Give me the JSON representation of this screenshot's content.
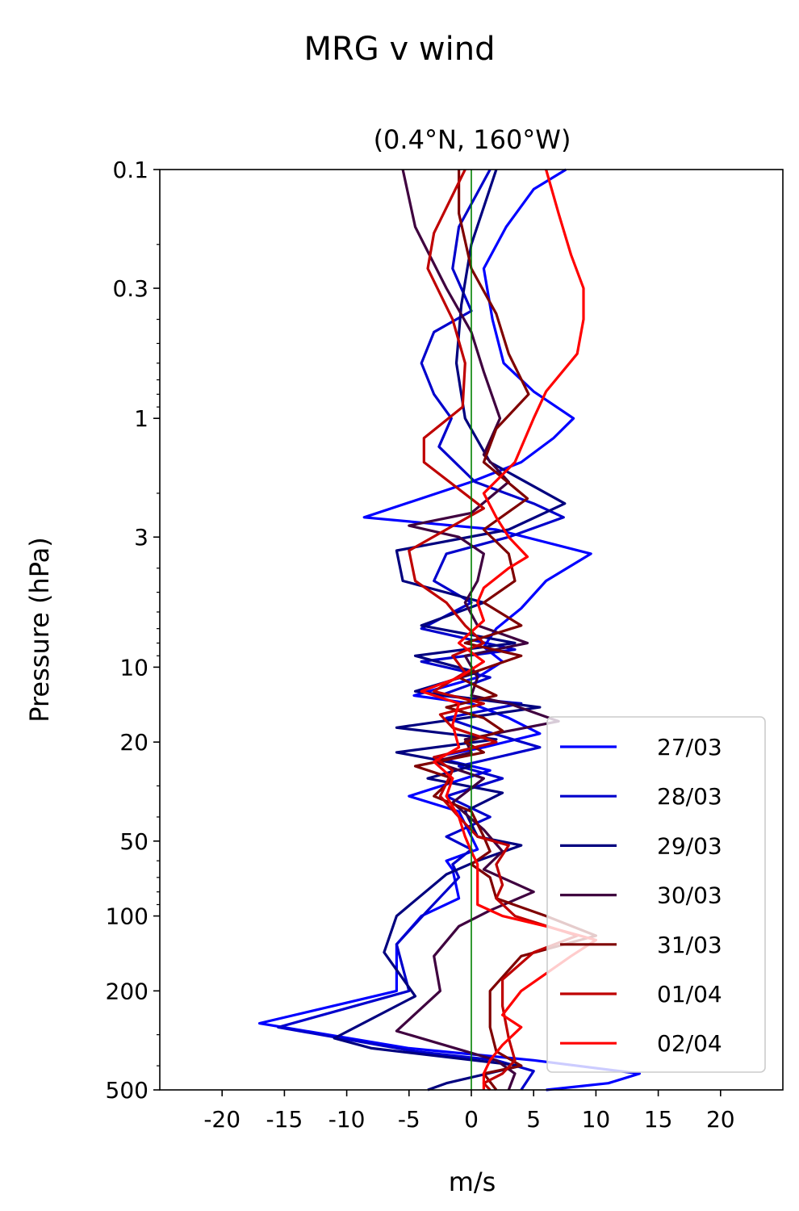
{
  "figure_title": "MRG v wind",
  "chart_data": {
    "type": "line",
    "title": "(0.4°N, 160°W)",
    "xlabel": "m/s",
    "ylabel": "Pressure (hPa)",
    "xlim": [
      -25,
      25
    ],
    "ylim": [
      500,
      0.1
    ],
    "yscale": "log",
    "xticks": [
      -20,
      -15,
      -10,
      -5,
      0,
      5,
      10,
      15,
      20
    ],
    "xtick_labels": [
      "-20",
      "-15",
      "-10",
      "-5",
      "0",
      "5",
      "10",
      "15",
      "20"
    ],
    "yticks": [
      0.1,
      0.3,
      1,
      3,
      10,
      20,
      50,
      100,
      200,
      500
    ],
    "ytick_labels": [
      "0.1",
      "0.3",
      "1",
      "3",
      "10",
      "20",
      "50",
      "100",
      "200",
      "500"
    ],
    "grid": false,
    "legend_position": "lower-right",
    "reference_line": {
      "x": 0,
      "color": "#008000"
    },
    "series": [
      {
        "name": "27/03",
        "color": "#0000ff",
        "points": [
          [
            7.6,
            0.1
          ],
          [
            5.0,
            0.12
          ],
          [
            2.8,
            0.17
          ],
          [
            1.0,
            0.25
          ],
          [
            1.7,
            0.4
          ],
          [
            2.6,
            0.6
          ],
          [
            5.0,
            0.78
          ],
          [
            8.2,
            1.0
          ],
          [
            6.6,
            1.2
          ],
          [
            4.0,
            1.5
          ],
          [
            0.0,
            1.8
          ],
          [
            -8.6,
            2.5
          ],
          [
            2.0,
            2.8
          ],
          [
            9.6,
            3.5
          ],
          [
            6.0,
            4.5
          ],
          [
            4.0,
            5.8
          ],
          [
            2.0,
            7.0
          ],
          [
            1.0,
            8.3
          ],
          [
            2.5,
            9.5
          ],
          [
            0.5,
            11
          ],
          [
            -4.6,
            13
          ],
          [
            0.0,
            14
          ],
          [
            3.0,
            16
          ],
          [
            5.5,
            18.5
          ],
          [
            1.0,
            21
          ],
          [
            -3.0,
            23
          ],
          [
            1.5,
            26
          ],
          [
            -5.0,
            33
          ],
          [
            -1.0,
            38
          ],
          [
            0.0,
            48
          ],
          [
            0.5,
            54
          ],
          [
            -2.0,
            60
          ],
          [
            -1.5,
            65
          ],
          [
            -1.0,
            85
          ],
          [
            -4.0,
            100
          ],
          [
            -6.0,
            130
          ],
          [
            -6.0,
            200
          ],
          [
            -17.0,
            270
          ],
          [
            -5.0,
            340
          ],
          [
            5.0,
            380
          ],
          [
            13.5,
            430
          ],
          [
            11.0,
            470
          ],
          [
            6.0,
            500
          ]
        ]
      },
      {
        "name": "28/03",
        "color": "#0000cc",
        "points": [
          [
            1.5,
            0.1
          ],
          [
            -1.0,
            0.17
          ],
          [
            -1.5,
            0.25
          ],
          [
            0.0,
            0.37
          ],
          [
            -3.0,
            0.45
          ],
          [
            -4.0,
            0.6
          ],
          [
            -3.0,
            0.8
          ],
          [
            -1.6,
            1.0
          ],
          [
            -2.6,
            1.3
          ],
          [
            0.3,
            1.8
          ],
          [
            5.0,
            2.2
          ],
          [
            7.4,
            2.5
          ],
          [
            3.0,
            3.0
          ],
          [
            -2.0,
            3.5
          ],
          [
            -3.0,
            4.5
          ],
          [
            0.0,
            5.5
          ],
          [
            -4.0,
            7.0
          ],
          [
            3.5,
            8.5
          ],
          [
            -4.0,
            9.5
          ],
          [
            1.5,
            11
          ],
          [
            -2.5,
            13
          ],
          [
            4.0,
            14
          ],
          [
            -2.0,
            16
          ],
          [
            1.0,
            18
          ],
          [
            5.5,
            21
          ],
          [
            -1.0,
            25
          ],
          [
            2.5,
            28
          ],
          [
            -2.0,
            33
          ],
          [
            1.5,
            40
          ],
          [
            -2.0,
            48
          ],
          [
            0.0,
            54
          ],
          [
            -1.5,
            62
          ],
          [
            -1.0,
            70
          ],
          [
            -3.5,
            95
          ],
          [
            -6.0,
            130
          ],
          [
            -5.0,
            200
          ],
          [
            -15.5,
            280
          ],
          [
            -4.5,
            350
          ],
          [
            2.0,
            380
          ],
          [
            5.0,
            420
          ],
          [
            4.0,
            500
          ]
        ]
      },
      {
        "name": "29/03",
        "color": "#00007f",
        "points": [
          [
            2.0,
            0.1
          ],
          [
            0.0,
            0.2
          ],
          [
            -0.8,
            0.35
          ],
          [
            -1.2,
            0.6
          ],
          [
            -0.5,
            1.0
          ],
          [
            1.5,
            1.5
          ],
          [
            7.5,
            2.2
          ],
          [
            3.0,
            2.8
          ],
          [
            -6.0,
            3.4
          ],
          [
            -5.5,
            4.5
          ],
          [
            1.0,
            5.5
          ],
          [
            -4.0,
            6.8
          ],
          [
            3.5,
            8
          ],
          [
            -4.5,
            9
          ],
          [
            0.5,
            10.5
          ],
          [
            -4.5,
            12.5
          ],
          [
            5.5,
            14.5
          ],
          [
            -6.0,
            17.5
          ],
          [
            2.0,
            19.5
          ],
          [
            -6.0,
            22
          ],
          [
            0.0,
            25
          ],
          [
            -3.5,
            28
          ],
          [
            2.5,
            32
          ],
          [
            -0.5,
            38
          ],
          [
            0.5,
            48
          ],
          [
            4.0,
            52
          ],
          [
            0.5,
            60
          ],
          [
            -2.0,
            68
          ],
          [
            -6.0,
            100
          ],
          [
            -7.0,
            140
          ],
          [
            -4.5,
            210
          ],
          [
            -11.0,
            310
          ],
          [
            -8.0,
            340
          ],
          [
            4.0,
            400
          ],
          [
            -2.0,
            470
          ],
          [
            -3.5,
            500
          ]
        ]
      },
      {
        "name": "30/03",
        "color": "#3f003f",
        "points": [
          [
            -5.5,
            0.1
          ],
          [
            -4.5,
            0.17
          ],
          [
            -2.0,
            0.3
          ],
          [
            0.0,
            0.45
          ],
          [
            1.0,
            0.65
          ],
          [
            2.3,
            1.0
          ],
          [
            1.0,
            1.4
          ],
          [
            3.0,
            1.8
          ],
          [
            0.0,
            2.4
          ],
          [
            -5.0,
            2.7
          ],
          [
            -1.0,
            3.0
          ],
          [
            1.0,
            3.5
          ],
          [
            0.5,
            4.5
          ],
          [
            -0.5,
            5.5
          ],
          [
            0.5,
            6.8
          ],
          [
            4.5,
            8
          ],
          [
            -0.5,
            9
          ],
          [
            0.5,
            11
          ],
          [
            0.0,
            13
          ],
          [
            3.0,
            14
          ],
          [
            7.0,
            16.5
          ],
          [
            -0.5,
            19.5
          ],
          [
            0.0,
            22
          ],
          [
            -3.0,
            24
          ],
          [
            1.0,
            28
          ],
          [
            -1.5,
            35
          ],
          [
            1.0,
            45
          ],
          [
            2.5,
            55
          ],
          [
            1.0,
            65
          ],
          [
            5.0,
            80
          ],
          [
            1.5,
            95
          ],
          [
            -1.0,
            110
          ],
          [
            -3.0,
            145
          ],
          [
            -2.5,
            200
          ],
          [
            -6.0,
            290
          ],
          [
            2.0,
            380
          ],
          [
            3.5,
            430
          ],
          [
            3.0,
            500
          ]
        ]
      },
      {
        "name": "31/03",
        "color": "#7f0000",
        "points": [
          [
            -1.0,
            0.1
          ],
          [
            -1.0,
            0.15
          ],
          [
            0.0,
            0.25
          ],
          [
            2.0,
            0.38
          ],
          [
            3.0,
            0.55
          ],
          [
            4.6,
            0.8
          ],
          [
            2.0,
            1.1
          ],
          [
            1.0,
            1.5
          ],
          [
            4.5,
            2.1
          ],
          [
            1.0,
            2.8
          ],
          [
            3.0,
            3.5
          ],
          [
            3.5,
            4.5
          ],
          [
            1.0,
            5.5
          ],
          [
            4.0,
            6.8
          ],
          [
            -0.5,
            8
          ],
          [
            4.0,
            9
          ],
          [
            -1.0,
            11
          ],
          [
            2.0,
            13
          ],
          [
            -2.0,
            14.5
          ],
          [
            1.0,
            16
          ],
          [
            2.5,
            18
          ],
          [
            -0.5,
            20
          ],
          [
            1.0,
            22
          ],
          [
            -4.5,
            25
          ],
          [
            -1.5,
            28
          ],
          [
            -3.0,
            33
          ],
          [
            0.0,
            38
          ],
          [
            1.0,
            48
          ],
          [
            1.5,
            55
          ],
          [
            0.0,
            62
          ],
          [
            1.5,
            70
          ],
          [
            2.0,
            85
          ],
          [
            6.0,
            100
          ],
          [
            10.0,
            120
          ],
          [
            4.0,
            145
          ],
          [
            1.5,
            200
          ],
          [
            1.5,
            280
          ],
          [
            2.0,
            350
          ],
          [
            4.0,
            400
          ],
          [
            1.0,
            430
          ],
          [
            2.0,
            500
          ]
        ]
      },
      {
        "name": "01/04",
        "color": "#bf0000",
        "points": [
          [
            -0.5,
            0.1
          ],
          [
            -3.0,
            0.18
          ],
          [
            -3.5,
            0.25
          ],
          [
            -1.5,
            0.4
          ],
          [
            -0.5,
            0.6
          ],
          [
            -0.7,
            0.9
          ],
          [
            -3.8,
            1.2
          ],
          [
            -3.8,
            1.5
          ],
          [
            1.0,
            2.3
          ],
          [
            -5.0,
            3.4
          ],
          [
            -4.5,
            4.5
          ],
          [
            -2.0,
            5.5
          ],
          [
            -0.5,
            6.8
          ],
          [
            1.0,
            8
          ],
          [
            -1.5,
            9
          ],
          [
            -0.5,
            10.5
          ],
          [
            -3.0,
            12.5
          ],
          [
            1.0,
            14
          ],
          [
            -2.5,
            15.5
          ],
          [
            -1.5,
            17.5
          ],
          [
            2.0,
            20
          ],
          [
            -3.0,
            23
          ],
          [
            -1.5,
            26
          ],
          [
            -2.5,
            33
          ],
          [
            -1.0,
            40
          ],
          [
            0.5,
            48
          ],
          [
            3.0,
            52
          ],
          [
            2.0,
            62
          ],
          [
            2.5,
            75
          ],
          [
            2.0,
            85
          ],
          [
            3.5,
            100
          ],
          [
            8.5,
            120
          ],
          [
            5.0,
            140
          ],
          [
            2.5,
            180
          ],
          [
            2.5,
            230
          ],
          [
            3.0,
            310
          ],
          [
            3.5,
            380
          ],
          [
            2.5,
            430
          ],
          [
            1.0,
            470
          ],
          [
            1.5,
            500
          ]
        ]
      },
      {
        "name": "02/04",
        "color": "#ff0000",
        "points": [
          [
            6.0,
            0.1
          ],
          [
            7.0,
            0.15
          ],
          [
            8.0,
            0.22
          ],
          [
            9.0,
            0.3
          ],
          [
            9.0,
            0.4
          ],
          [
            8.5,
            0.55
          ],
          [
            6.0,
            0.78
          ],
          [
            5.0,
            1.0
          ],
          [
            3.5,
            1.5
          ],
          [
            1.0,
            2.0
          ],
          [
            2.0,
            2.5
          ],
          [
            3.0,
            3.0
          ],
          [
            4.5,
            3.6
          ],
          [
            3.0,
            4.0
          ],
          [
            1.0,
            4.8
          ],
          [
            0.5,
            5.5
          ],
          [
            1.0,
            6.5
          ],
          [
            -1.0,
            8
          ],
          [
            1.0,
            9.5
          ],
          [
            -1.0,
            11
          ],
          [
            -4.0,
            12.5
          ],
          [
            -1.0,
            14
          ],
          [
            -1.5,
            17
          ],
          [
            -1.0,
            21
          ],
          [
            -3.0,
            24
          ],
          [
            -1.5,
            28
          ],
          [
            -2.0,
            33
          ],
          [
            -1.0,
            40
          ],
          [
            -0.5,
            48
          ],
          [
            0.0,
            55
          ],
          [
            0.5,
            62
          ],
          [
            0.5,
            75
          ],
          [
            0.5,
            90
          ],
          [
            2.5,
            100
          ],
          [
            6.0,
            110
          ],
          [
            10.0,
            125
          ],
          [
            8.0,
            145
          ],
          [
            4.0,
            200
          ],
          [
            2.5,
            250
          ],
          [
            4.0,
            280
          ],
          [
            2.5,
            330
          ],
          [
            1.5,
            380
          ],
          [
            1.0,
            430
          ],
          [
            1.0,
            500
          ]
        ]
      }
    ]
  }
}
